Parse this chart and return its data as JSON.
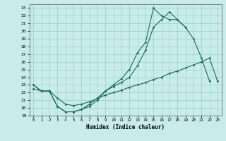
{
  "xlabel": "Humidex (Indice chaleur)",
  "xlim": [
    -0.5,
    23.5
  ],
  "ylim": [
    19,
    33.5
  ],
  "yticks": [
    19,
    20,
    21,
    22,
    23,
    24,
    25,
    26,
    27,
    28,
    29,
    30,
    31,
    32,
    33
  ],
  "xticks": [
    0,
    1,
    2,
    3,
    4,
    5,
    6,
    7,
    8,
    9,
    10,
    11,
    12,
    13,
    14,
    15,
    16,
    17,
    18,
    19,
    20,
    21,
    22,
    23
  ],
  "background_color": "#c8ece9",
  "grid_color": "#9fccc8",
  "line_color": "#1a6b5a",
  "line1_x": [
    0,
    1,
    2,
    3,
    4,
    5,
    6,
    7,
    8,
    9,
    10,
    11,
    12,
    13,
    14,
    15,
    16,
    17,
    18,
    19,
    20,
    21,
    22
  ],
  "line1_y": [
    23,
    22.2,
    22.2,
    20.2,
    19.5,
    19.5,
    19.8,
    20.5,
    21.3,
    22.2,
    22.8,
    23.3,
    24.0,
    25.5,
    27.5,
    30.5,
    31.5,
    32.5,
    31.5,
    30.5,
    29,
    26.5,
    23.5
  ],
  "line2_x": [
    0,
    1,
    2,
    3,
    4,
    5,
    6,
    7,
    8,
    9,
    10,
    11,
    12,
    13,
    14,
    15,
    16,
    17,
    18,
    19
  ],
  "line2_y": [
    23,
    22.2,
    22.2,
    20.2,
    19.5,
    19.5,
    19.8,
    20.2,
    21.0,
    22.2,
    23.0,
    23.8,
    25.0,
    27.2,
    28.5,
    33.0,
    32.0,
    31.5,
    31.5,
    30.5
  ],
  "line3_x": [
    0,
    1,
    2,
    3,
    4,
    5,
    6,
    7,
    8,
    9,
    10,
    11,
    12,
    13,
    14,
    15,
    16,
    17,
    18,
    19,
    20,
    21,
    22,
    23
  ],
  "line3_y": [
    22.5,
    22.2,
    22.2,
    21.3,
    20.5,
    20.3,
    20.5,
    20.8,
    21.2,
    21.7,
    22.0,
    22.3,
    22.7,
    23.0,
    23.3,
    23.7,
    24.0,
    24.5,
    24.8,
    25.2,
    25.6,
    26.0,
    26.5,
    23.5
  ]
}
